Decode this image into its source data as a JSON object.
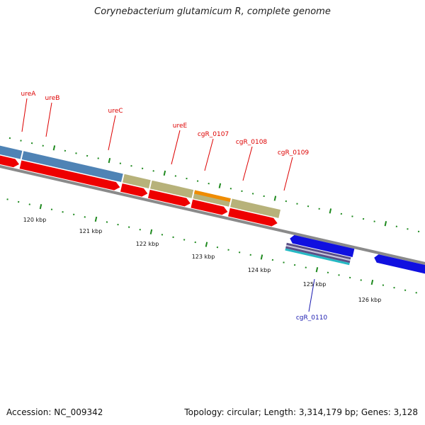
{
  "title": "Corynebacterium glutamicum R, complete genome",
  "accession": "Accession: NC_009342",
  "topology": "Topology: circular; Length: 3,314,179 bp; Genes: 3,128",
  "colors": {
    "backbone": "#8a8a8a",
    "tick": "#1f8a1f",
    "gene_red": "#ee0000",
    "gene_blue": "#1010e0",
    "cds_blue": "#4f83b5",
    "cds_olive": "#b7b27a",
    "cds_orange": "#f08c00",
    "rna_purple": "#5a4f86",
    "rna_cyan": "#25b9c4",
    "label_red": "#dd0000",
    "label_blue": "#1a1ab0"
  },
  "scale": {
    "labels": [
      "120 kbp",
      "121 kbp",
      "122 kbp",
      "123 kbp",
      "124 kbp",
      "125 kbp",
      "126 kbp"
    ]
  },
  "gene_labels": [
    {
      "name": "ureA",
      "color": "red"
    },
    {
      "name": "ureB",
      "color": "red"
    },
    {
      "name": "ureC",
      "color": "red"
    },
    {
      "name": "ureE",
      "color": "red"
    },
    {
      "name": "cgR_0107",
      "color": "red"
    },
    {
      "name": "cgR_0108",
      "color": "red"
    },
    {
      "name": "cgR_0109",
      "color": "red"
    },
    {
      "name": "cgR_0110",
      "color": "blue"
    }
  ]
}
